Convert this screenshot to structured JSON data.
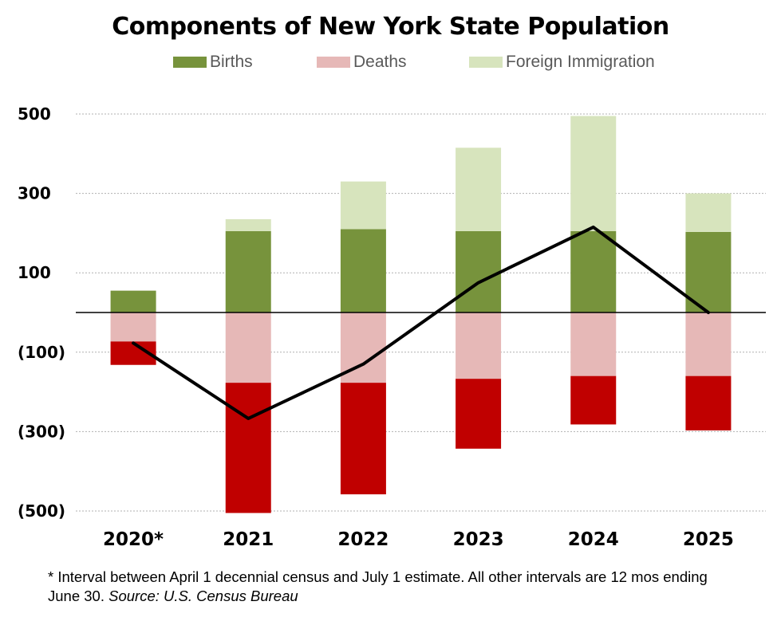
{
  "chart_data": {
    "type": "bar",
    "stacked": true,
    "title": "Components of New York State Population",
    "categories": [
      "2020*",
      "2021",
      "2022",
      "2023",
      "2024",
      "2025"
    ],
    "series": [
      {
        "name": "Births",
        "color": "#77933c",
        "values": [
          55,
          205,
          210,
          205,
          205,
          203
        ]
      },
      {
        "name": "Deaths",
        "color": "#e6b8b7",
        "negative_split": true,
        "values": [
          -132,
          -505,
          -458,
          -343,
          -282,
          -297
        ]
      },
      {
        "name": "Foreign Immigration",
        "color": "#d7e4bd",
        "values": [
          0,
          30,
          120,
          210,
          290,
          97
        ]
      }
    ],
    "deaths_darkred_segment": {
      "color": "#c00000",
      "start_values": [
        -73,
        -177,
        -177,
        -167,
        -160,
        -160
      ]
    },
    "net_change_line": {
      "values": [
        -77,
        -267,
        -130,
        75,
        215,
        0
      ],
      "color": "#000000"
    },
    "y_axis": {
      "ticks": [
        "500",
        "300",
        "100",
        "(100)",
        "(300)",
        "(500)"
      ],
      "tick_values": [
        500,
        300,
        100,
        -100,
        -300,
        -500
      ],
      "ylim": [
        -500,
        500
      ]
    },
    "legend_position": "top",
    "gridlines": true
  },
  "legend": {
    "births": "Births",
    "deaths": "Deaths",
    "immigration": "Foreign Immigration"
  },
  "footnote": {
    "text": "* Interval between April 1 decennial census and July 1 estimate. All other intervals are 12 mos ending June 30.",
    "source": "Source: U.S. Census Bureau"
  }
}
